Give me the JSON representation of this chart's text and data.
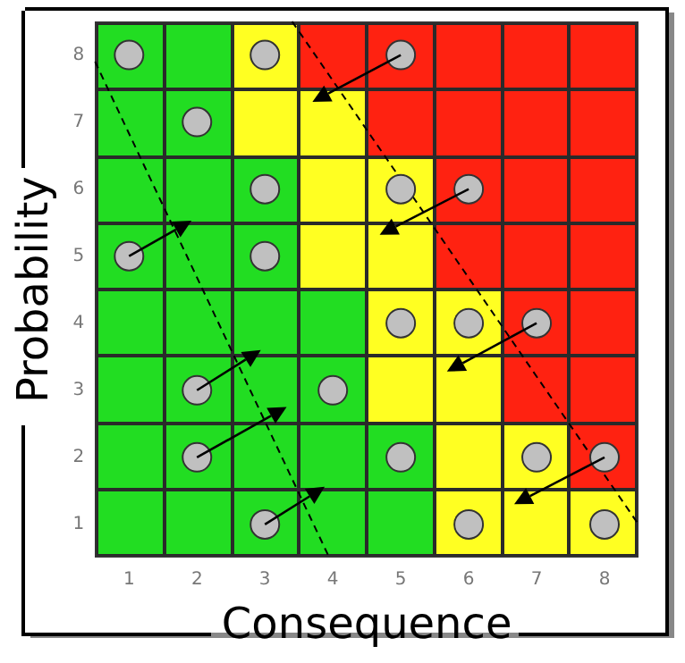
{
  "chart_data": {
    "type": "scatter",
    "xlabel": "Consequence",
    "ylabel": "Probability",
    "xlim": [
      0.5,
      8.5
    ],
    "ylim": [
      0.5,
      8.5
    ],
    "xticks": [
      1,
      2,
      3,
      4,
      5,
      6,
      7,
      8
    ],
    "yticks": [
      1,
      2,
      3,
      4,
      5,
      6,
      7,
      8
    ],
    "marker": "circle",
    "series": [
      {
        "type": "scatter",
        "color": "#c0c0c0",
        "x": [
          1,
          3,
          5,
          2,
          3,
          5,
          6,
          1,
          3,
          5,
          6,
          7,
          2,
          4,
          2,
          5,
          7,
          8,
          3,
          6,
          8
        ],
        "values": [
          8,
          8,
          8,
          7,
          6,
          6,
          6,
          5,
          5,
          4,
          4,
          4,
          3,
          3,
          2,
          2,
          2,
          2,
          1,
          1,
          1
        ]
      },
      {
        "type": "line",
        "color": "#000000",
        "line_style": "dashed",
        "marker": "none",
        "x": [
          0.5,
          3.95
        ],
        "values": [
          7.9,
          0.5
        ]
      },
      {
        "type": "line",
        "color": "#000000",
        "line_style": "dashed",
        "marker": "none",
        "x": [
          3.4,
          8.5
        ],
        "values": [
          8.5,
          1.0
        ]
      }
    ]
  }
}
